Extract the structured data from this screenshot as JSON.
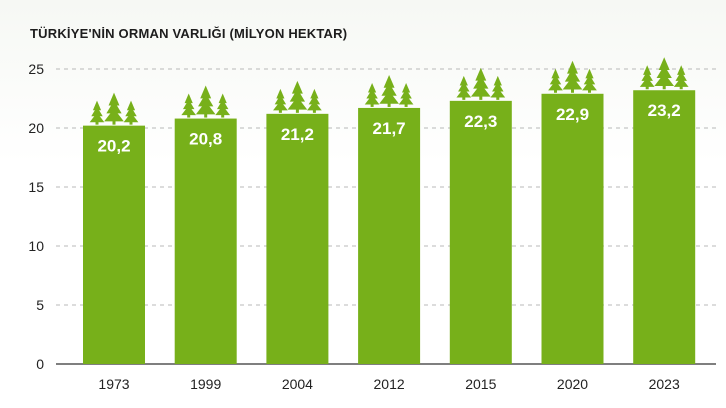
{
  "chart_data": {
    "type": "bar",
    "title": "TÜRKİYE'NİN ORMAN VARLIĞI (MİLYON HEKTAR)",
    "categories": [
      "1973",
      "1999",
      "2004",
      "2012",
      "2015",
      "2020",
      "2023"
    ],
    "values": [
      20.2,
      20.8,
      21.2,
      21.7,
      22.3,
      22.9,
      23.2
    ],
    "value_labels": [
      "20,2",
      "20,8",
      "21,2",
      "21,7",
      "22,3",
      "22,9",
      "23,2"
    ],
    "ylim": [
      0,
      25
    ],
    "yticks": [
      "0",
      "5",
      "10",
      "15",
      "20",
      "25"
    ],
    "grid": true,
    "bar_color": "#77b01a",
    "tree_color": "#77b01a",
    "grid_color": "#b8b8b8",
    "bar_decoration_icon": "tree-icon"
  }
}
